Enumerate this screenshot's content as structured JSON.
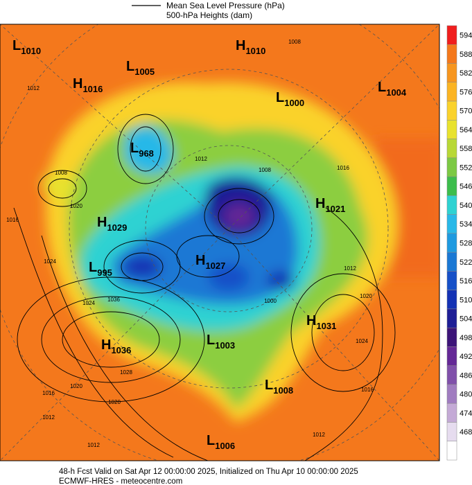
{
  "legend": {
    "line_label": "Mean Sea Level Pressure (hPa)",
    "fill_label": "500-hPa Heights (dam)"
  },
  "colorbar": [
    {
      "value": 594,
      "color": "#f01e1e"
    },
    {
      "value": 588,
      "color": "#f4781c"
    },
    {
      "value": 582,
      "color": "#f7961f"
    },
    {
      "value": 576,
      "color": "#fbb423"
    },
    {
      "value": 570,
      "color": "#fad22c"
    },
    {
      "value": 564,
      "color": "#e8e22e"
    },
    {
      "value": 558,
      "color": "#b8d836"
    },
    {
      "value": 552,
      "color": "#7cc944"
    },
    {
      "value": 546,
      "color": "#3cbd4c"
    },
    {
      "value": 540,
      "color": "#2ed2d2"
    },
    {
      "value": 534,
      "color": "#28b8e8"
    },
    {
      "value": 528,
      "color": "#1e9ae0"
    },
    {
      "value": 522,
      "color": "#1a78d4"
    },
    {
      "value": 516,
      "color": "#1650c8"
    },
    {
      "value": 510,
      "color": "#1432b4"
    },
    {
      "value": 504,
      "color": "#1e1e96"
    },
    {
      "value": 498,
      "color": "#3c1478"
    },
    {
      "value": 492,
      "color": "#642896"
    },
    {
      "value": 486,
      "color": "#8050aa"
    },
    {
      "value": 480,
      "color": "#a07cc0"
    },
    {
      "value": 474,
      "color": "#c4aad6"
    },
    {
      "value": 468,
      "color": "#e6dcef"
    }
  ],
  "centers": [
    {
      "letter": "L",
      "value": 1010
    },
    {
      "letter": "H",
      "value": 1010
    },
    {
      "letter": "L",
      "value": 1005
    },
    {
      "letter": "H",
      "value": 1016
    },
    {
      "letter": "L",
      "value": 1004
    },
    {
      "letter": "L",
      "value": 1000
    },
    {
      "letter": "L",
      "value": 968
    },
    {
      "letter": "H",
      "value": 1021
    },
    {
      "letter": "H",
      "value": 1029
    },
    {
      "letter": "L",
      "value": 995
    },
    {
      "letter": "H",
      "value": 1027
    },
    {
      "letter": "H",
      "value": 1031
    },
    {
      "letter": "H",
      "value": 1036
    },
    {
      "letter": "L",
      "value": 1003
    },
    {
      "letter": "L",
      "value": 1008
    },
    {
      "letter": "L",
      "value": 1006
    }
  ],
  "isobar_labels": [
    1012,
    1008,
    1012,
    1008,
    1008,
    1020,
    1016,
    1024,
    1036,
    1024,
    1028,
    1020,
    1016,
    1012,
    1020,
    1012,
    1012,
    1020,
    1024,
    1016,
    1012,
    1016,
    1000
  ],
  "footer": {
    "line1": "48-h Fcst Valid on Sat Apr 12 00:00:00 2025, Initialized on Thu Apr 10 00:00:00 2025",
    "line2": "ECMWF-HRES  - meteocentre.com"
  }
}
